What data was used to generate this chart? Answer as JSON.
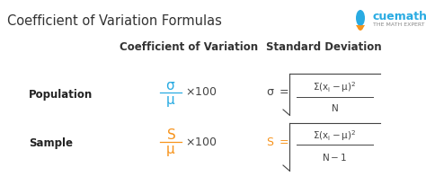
{
  "title": "Coefficient of Variation Formulas",
  "title_fontsize": 10.5,
  "title_color": "#333333",
  "bg_color": "#ffffff",
  "col1_header": "Coefficient of Variation",
  "col2_header": "Standard Deviation",
  "header_color": "#333333",
  "header_fontsize": 8.5,
  "row1_label": "Population",
  "row2_label": "Sample",
  "label_fontsize": 8.5,
  "label_color": "#222222",
  "blue_color": "#29ABE2",
  "orange_color": "#F7941D",
  "dark_color": "#444444",
  "gray_color": "#888888",
  "cuemath_color": "#29ABE2",
  "cuemath_text": "cuemath",
  "subtitle_text": "THE MATH EXPERT"
}
